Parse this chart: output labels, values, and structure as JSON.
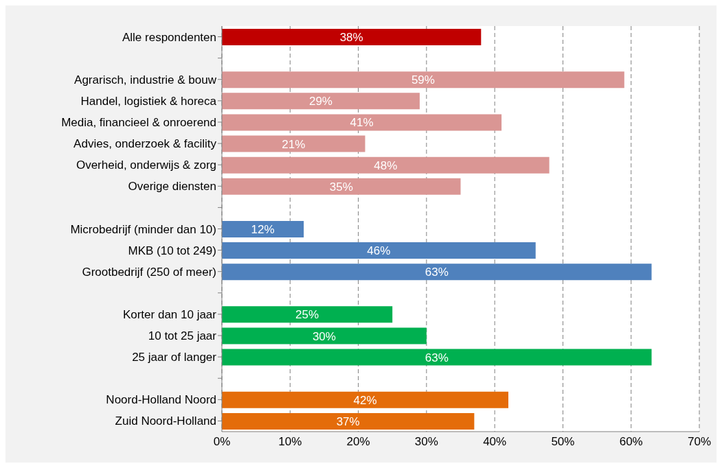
{
  "chart_data": {
    "type": "bar",
    "orientation": "horizontal",
    "categories": [
      "Alle respondenten",
      null,
      "Agrarisch, industrie & bouw",
      "Handel, logistiek & horeca",
      "Media, financieel & onroerend",
      "Advies, onderzoek & facility",
      "Overheid, onderwijs & zorg",
      "Overige diensten",
      null,
      "Microbedrijf (minder dan 10)",
      "MKB (10 tot 249)",
      "Grootbedrijf (250 of meer)",
      null,
      "Korter dan 10 jaar",
      "10 tot 25 jaar",
      "25 jaar of langer",
      null,
      "Noord-Holland Noord",
      "Zuid Noord-Holland"
    ],
    "values": [
      38,
      null,
      59,
      29,
      41,
      21,
      48,
      35,
      null,
      12,
      46,
      63,
      null,
      25,
      30,
      63,
      null,
      42,
      37
    ],
    "value_labels": [
      "38%",
      null,
      "59%",
      "29%",
      "41%",
      "21%",
      "48%",
      "35%",
      null,
      "12%",
      "46%",
      "63%",
      null,
      "25%",
      "30%",
      "63%",
      null,
      "42%",
      "37%"
    ],
    "colors": [
      "#c00000",
      null,
      "#da9694",
      "#da9694",
      "#da9694",
      "#da9694",
      "#da9694",
      "#da9694",
      null,
      "#4f81bd",
      "#4f81bd",
      "#4f81bd",
      null,
      "#00b050",
      "#00b050",
      "#00b050",
      null,
      "#e46c0a",
      "#e46c0a"
    ],
    "xlim": [
      0,
      70
    ],
    "xticks": [
      {
        "value": 0,
        "label": "0%"
      },
      {
        "value": 10,
        "label": "10%"
      },
      {
        "value": 20,
        "label": "20%"
      },
      {
        "value": 30,
        "label": "30%"
      },
      {
        "value": 40,
        "label": "40%"
      },
      {
        "value": 50,
        "label": "50%"
      },
      {
        "value": 60,
        "label": "60%"
      },
      {
        "value": 70,
        "label": "70%"
      }
    ],
    "grid": "x"
  }
}
